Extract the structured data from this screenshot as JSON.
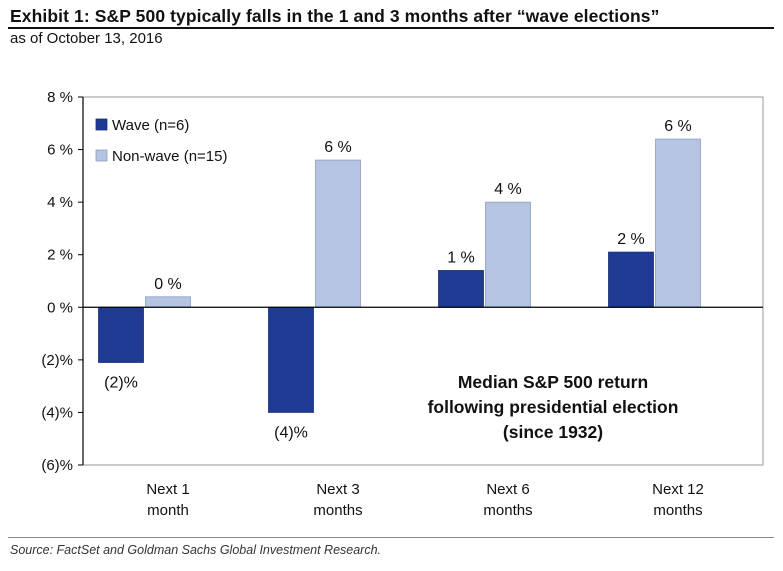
{
  "header": {
    "title": "Exhibit 1: S&P 500 typically falls in the 1 and 3 months after “wave elections”",
    "subtitle": "as of October 13, 2016"
  },
  "footer": {
    "source": "Source: FactSet and Goldman Sachs Global Investment Research."
  },
  "colors": {
    "wave": "#1f3a93",
    "non_wave": "#b4c4e2",
    "axis": "#000000",
    "frame": "#999999"
  },
  "chart_data": {
    "type": "bar",
    "categories": [
      [
        "Next 1",
        "month"
      ],
      [
        "Next 3",
        "months"
      ],
      [
        "Next 6",
        "months"
      ],
      [
        "Next 12",
        "months"
      ]
    ],
    "series": [
      {
        "name": "Wave (n=6)",
        "values": [
          -2.1,
          -4.0,
          1.4,
          2.1
        ],
        "labels": [
          "(2)%",
          "(4)%",
          "1 %",
          "2 %"
        ]
      },
      {
        "name": "Non-wave (n=15)",
        "values": [
          0.4,
          5.6,
          4.0,
          6.4
        ],
        "labels": [
          "0 %",
          "6 %",
          "4 %",
          "6 %"
        ]
      }
    ],
    "ylim": [
      -6,
      8
    ],
    "yticks": [
      8,
      6,
      4,
      2,
      0,
      -2,
      -4,
      -6
    ],
    "ytick_labels": [
      "8 %",
      "6 %",
      "4 %",
      "2 %",
      "0 %",
      "(2)%",
      "(4)%",
      "(6)%"
    ],
    "legend_position": "top-left",
    "grid": false,
    "annotation": [
      "Median S&P 500 return",
      "following presidential election",
      "(since 1932)"
    ]
  }
}
